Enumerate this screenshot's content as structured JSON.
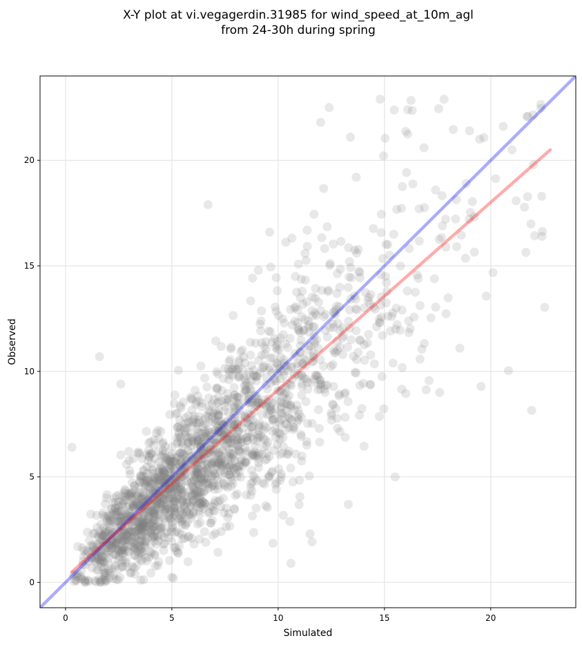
{
  "chart_data": {
    "type": "scatter",
    "title_line1": "X-Y plot at vi.vegagerdin.31985 for wind_speed_at_10m_agl",
    "title_line2": "from 24-30h during spring",
    "xlabel": "Simulated",
    "ylabel": "Observed",
    "xlim": [
      -1.2,
      24.0
    ],
    "ylim": [
      -1.2,
      24.0
    ],
    "xticks": [
      0,
      5,
      10,
      15,
      20
    ],
    "yticks": [
      0,
      5,
      10,
      15,
      20
    ],
    "tick_labels_x": [
      "0",
      "5",
      "10",
      "15",
      "20"
    ],
    "tick_labels_y": [
      "0",
      "5",
      "10",
      "15",
      "20"
    ],
    "grid": true,
    "point_color": "#808080",
    "point_alpha": 0.18,
    "n_points_approx": 2100,
    "visible_points": [
      [
        0.3,
        6.4
      ],
      [
        1.6,
        10.7
      ],
      [
        2.6,
        9.4
      ],
      [
        6.7,
        17.9
      ],
      [
        9.6,
        16.6
      ],
      [
        12.4,
        22.5
      ],
      [
        14.8,
        22.9
      ],
      [
        13.4,
        21.1
      ],
      [
        16.1,
        22.4
      ],
      [
        17.6,
        9.0
      ],
      [
        15.5,
        5.0
      ],
      [
        13.3,
        3.7
      ],
      [
        11.5,
        2.3
      ],
      [
        10.6,
        0.9
      ],
      [
        12.0,
        21.8
      ],
      [
        19.0,
        21.4
      ],
      [
        22.4,
        18.3
      ],
      [
        21.0,
        20.5
      ]
    ],
    "reference_lines": [
      {
        "kind": "identity",
        "color": "#0000ff",
        "alpha": 0.33,
        "points": [
          [
            -1.2,
            -1.2
          ],
          [
            24.0,
            24.0
          ]
        ]
      },
      {
        "kind": "regression",
        "color": "#ff0000",
        "alpha": 0.33,
        "points": [
          [
            0.3,
            0.5
          ],
          [
            22.8,
            20.5
          ]
        ]
      }
    ]
  }
}
